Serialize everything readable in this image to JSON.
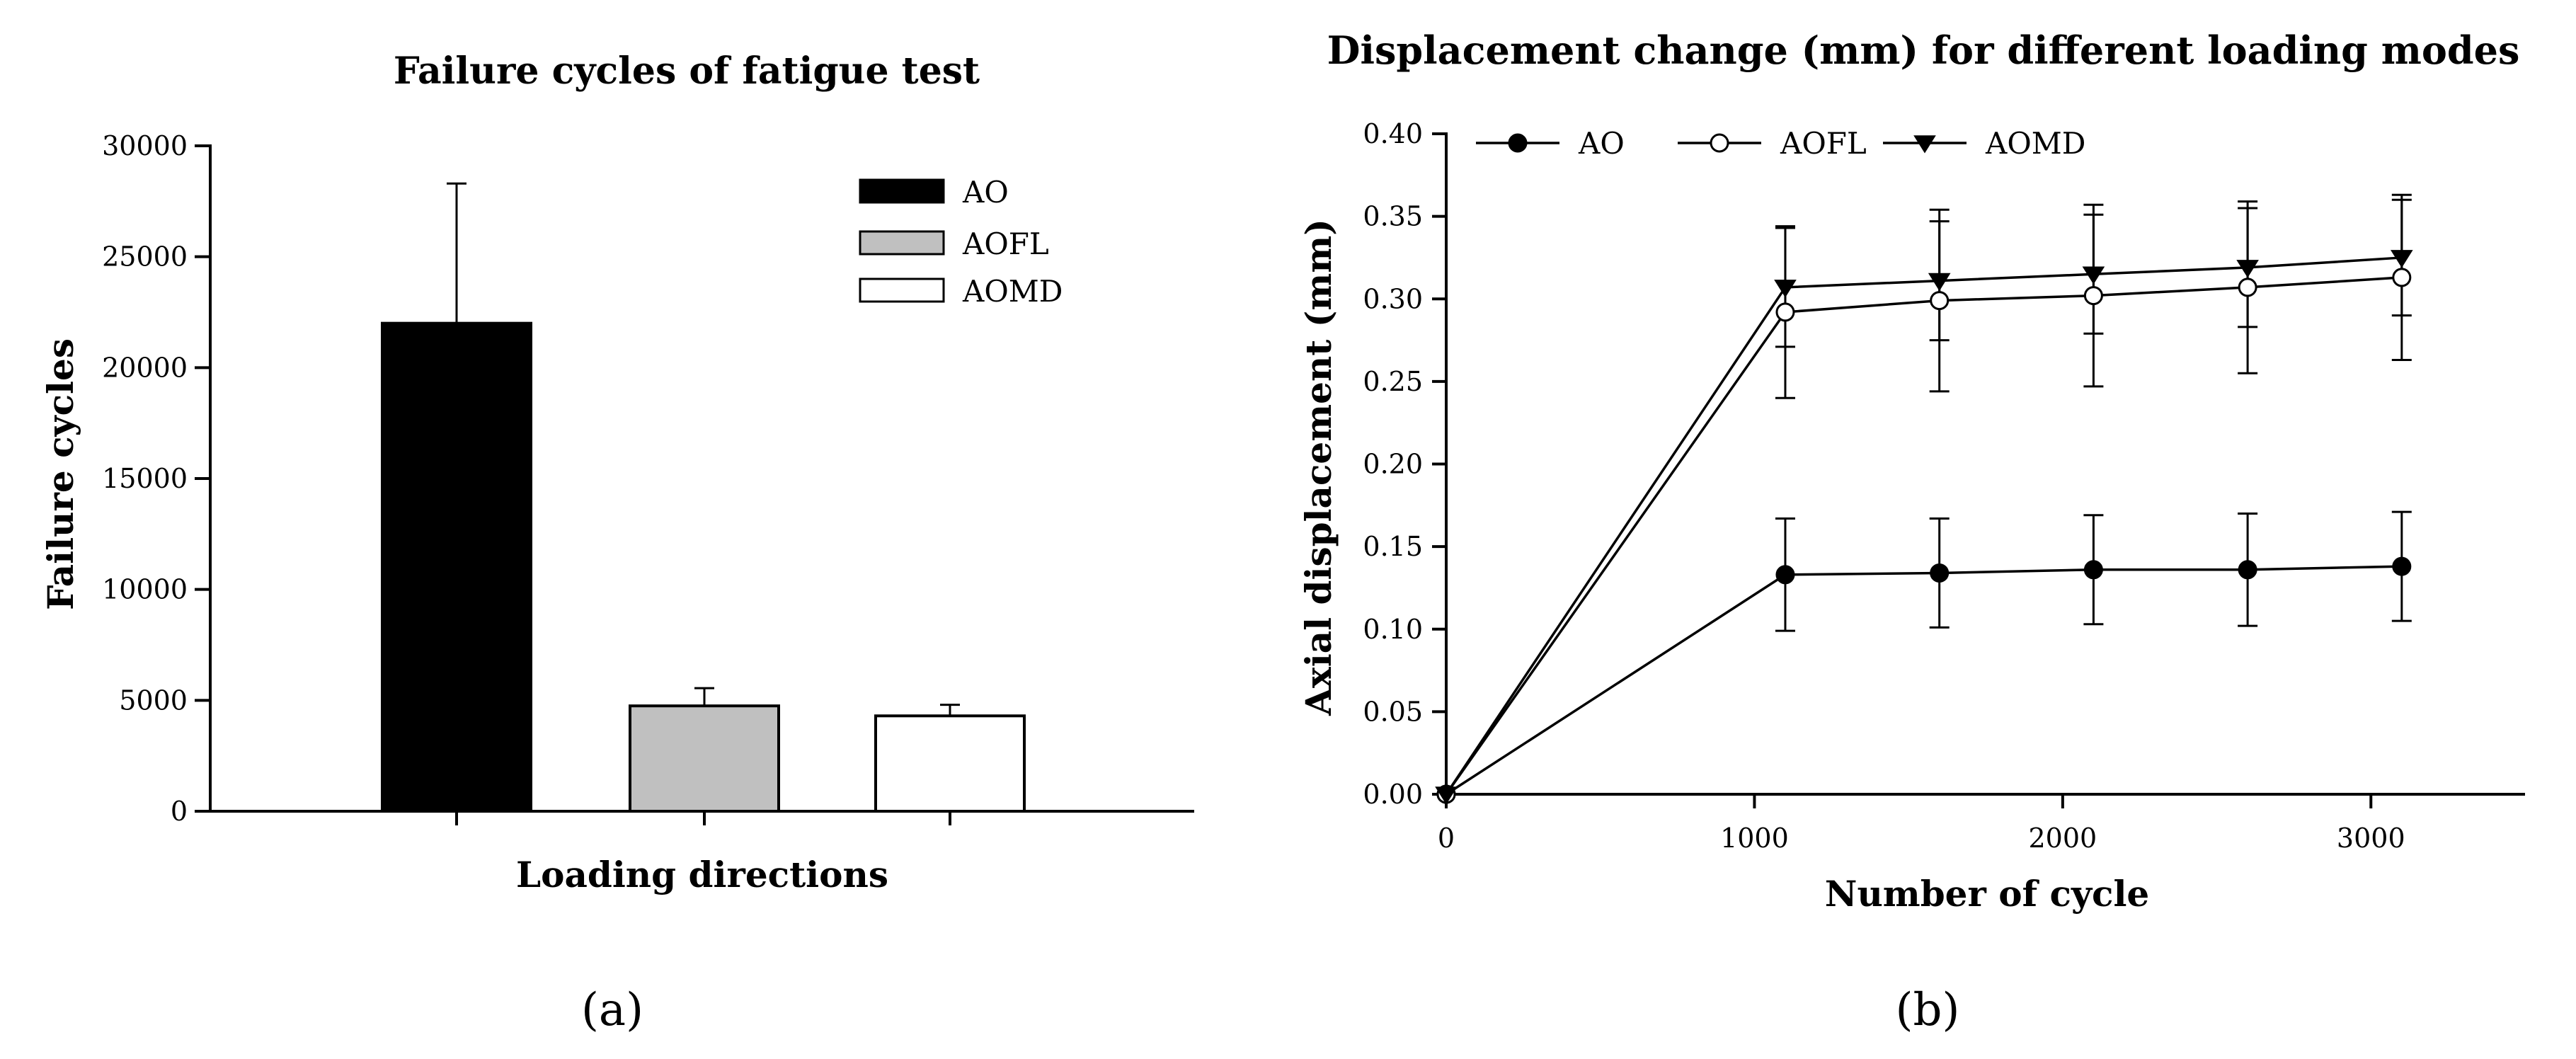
{
  "chart_data": [
    {
      "type": "bar",
      "title": "Failure cycles of fatigue test",
      "xlabel": "Loading directions",
      "ylabel": "Failure cycles",
      "categories": [
        "AO",
        "AOFL",
        "AOMD"
      ],
      "values": [
        22000,
        4750,
        4300
      ],
      "errors": [
        6300,
        800,
        500
      ],
      "colors": [
        "#000000",
        "#c0c0c0",
        "#ffffff"
      ],
      "ylim": [
        0,
        30000
      ],
      "yticks": [
        0,
        5000,
        10000,
        15000,
        20000,
        25000,
        30000
      ],
      "legend": [
        "AO",
        "AOFL",
        "AOMD"
      ],
      "legend_position": "top-right",
      "panel_label": "(a)"
    },
    {
      "type": "line",
      "title": "Displacement change (mm) for different loading modes",
      "xlabel": "Number of cycle",
      "ylabel": "Axial displacement (mm)",
      "xlim": [
        0,
        3500
      ],
      "ylim": [
        0,
        0.4
      ],
      "xticks": [
        0,
        1000,
        2000,
        3000
      ],
      "yticks": [
        "0.00",
        "0.05",
        "0.10",
        "0.15",
        "0.20",
        "0.25",
        "0.30",
        "0.35",
        "0.40"
      ],
      "x": [
        0,
        1100,
        1600,
        2100,
        2600,
        3100
      ],
      "series": [
        {
          "name": "AO",
          "marker": "filled-circle",
          "values": [
            0,
            0.133,
            0.134,
            0.136,
            0.136,
            0.138
          ],
          "errors": [
            0,
            0.034,
            0.033,
            0.033,
            0.034,
            0.033
          ]
        },
        {
          "name": "AOFL",
          "marker": "open-circle",
          "values": [
            0,
            0.292,
            0.299,
            0.302,
            0.307,
            0.313
          ],
          "errors": [
            0,
            0.052,
            0.055,
            0.055,
            0.052,
            0.05
          ]
        },
        {
          "name": "AOMD",
          "marker": "filled-triangle-down",
          "values": [
            0,
            0.307,
            0.311,
            0.315,
            0.319,
            0.325
          ],
          "errors": [
            0,
            0.036,
            0.036,
            0.036,
            0.036,
            0.035
          ]
        }
      ],
      "legend_position": "top-left",
      "panel_label": "(b)"
    }
  ]
}
